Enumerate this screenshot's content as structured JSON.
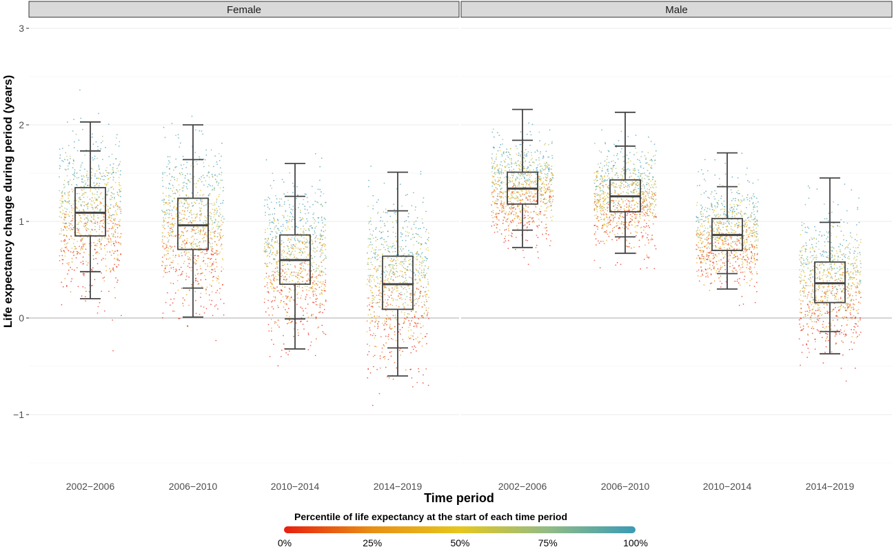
{
  "chart_data": {
    "type": "boxplot",
    "ylabel": "Life expectancy change during period (years)",
    "xlabel": "Time period",
    "y_ticks": [
      -1,
      0,
      1,
      2,
      3
    ],
    "y_range": [
      -1.5,
      3.0
    ],
    "grid": true,
    "legend": {
      "title": "Percentile of life expectancy at the start of each time period",
      "position": "bottom",
      "tick_labels": [
        "0%",
        "25%",
        "50%",
        "75%",
        "100%"
      ],
      "colors": [
        "#e8200f",
        "#e88f14",
        "#e6c71e",
        "#93bb86",
        "#3a9bb5"
      ]
    },
    "panels": [
      {
        "name": "Female",
        "categories": [
          "2002−2006",
          "2006−2010",
          "2010−2014",
          "2014−2019"
        ],
        "boxes": [
          {
            "whisker_low": 0.2,
            "p5": 0.48,
            "q1": 0.85,
            "median": 1.09,
            "q3": 1.35,
            "p95": 1.73,
            "whisker_high": 2.03,
            "scatter_min": 0.0,
            "scatter_max": 2.2
          },
          {
            "whisker_low": 0.01,
            "p5": 0.31,
            "q1": 0.71,
            "median": 0.96,
            "q3": 1.24,
            "p95": 1.64,
            "whisker_high": 2.0,
            "scatter_min": -0.1,
            "scatter_max": 2.2
          },
          {
            "whisker_low": -0.32,
            "p5": -0.01,
            "q1": 0.35,
            "median": 0.6,
            "q3": 0.86,
            "p95": 1.26,
            "whisker_high": 1.6,
            "scatter_min": -0.6,
            "scatter_max": 1.9
          },
          {
            "whisker_low": -0.6,
            "p5": -0.31,
            "q1": 0.09,
            "median": 0.35,
            "q3": 0.64,
            "p95": 1.11,
            "whisker_high": 1.51,
            "scatter_min": -0.9,
            "scatter_max": 1.9
          }
        ]
      },
      {
        "name": "Male",
        "categories": [
          "2002−2006",
          "2006−2010",
          "2010−2014",
          "2014−2019"
        ],
        "boxes": [
          {
            "whisker_low": 0.73,
            "p5": 0.91,
            "q1": 1.18,
            "median": 1.34,
            "q3": 1.51,
            "p95": 1.84,
            "whisker_high": 2.16,
            "scatter_min": 0.5,
            "scatter_max": 2.5
          },
          {
            "whisker_low": 0.67,
            "p5": 0.84,
            "q1": 1.1,
            "median": 1.26,
            "q3": 1.43,
            "p95": 1.78,
            "whisker_high": 2.13,
            "scatter_min": 0.5,
            "scatter_max": 2.4
          },
          {
            "whisker_low": 0.3,
            "p5": 0.46,
            "q1": 0.7,
            "median": 0.86,
            "q3": 1.03,
            "p95": 1.36,
            "whisker_high": 1.71,
            "scatter_min": 0.1,
            "scatter_max": 1.9
          },
          {
            "whisker_low": -0.37,
            "p5": -0.14,
            "q1": 0.16,
            "median": 0.36,
            "q3": 0.58,
            "p95": 0.99,
            "whisker_high": 1.45,
            "scatter_min": -0.7,
            "scatter_max": 1.5
          }
        ]
      }
    ]
  }
}
